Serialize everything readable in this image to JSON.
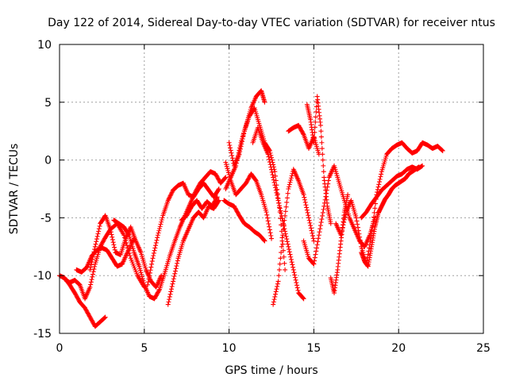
{
  "chart_data": {
    "type": "scatter",
    "title": "Day 122 of 2014, Sidereal Day-to-day VTEC variation (SDTVAR) for receiver ntus",
    "xlabel": "GPS time / hours",
    "ylabel": "SDTVAR / TECUs",
    "xlim": [
      0,
      25
    ],
    "ylim": [
      -15,
      10
    ],
    "xticks": [
      0,
      5,
      10,
      15,
      20,
      25
    ],
    "yticks": [
      -15,
      -10,
      -5,
      0,
      5,
      10
    ],
    "x_tick_labels": [
      "0",
      "5",
      "10",
      "15",
      "20",
      "25"
    ],
    "y_tick_labels": [
      "-15",
      "-10",
      "-5",
      "0",
      "5",
      "10"
    ],
    "grid": true,
    "marker": "+",
    "series_color": "#ff0000",
    "series": [
      {
        "name": "trace-1",
        "x": [
          0,
          0.3,
          0.6,
          0.9,
          1.2,
          1.5,
          1.8,
          2.1,
          2.4,
          2.7
        ],
        "y": [
          -10,
          -10.2,
          -10.8,
          -11.5,
          -12.3,
          -12.8,
          -13.6,
          -14.4,
          -14,
          -13.6
        ]
      },
      {
        "name": "trace-2",
        "x": [
          0.3,
          0.6,
          0.9,
          1.2,
          1.5,
          1.8,
          2.1,
          2.4,
          2.7,
          3.0,
          3.4,
          3.8,
          4.2,
          4.6,
          5.0
        ],
        "y": [
          -10.3,
          -10.6,
          -10.4,
          -10.8,
          -12.0,
          -11.0,
          -9.0,
          -7.5,
          -6.7,
          -6.0,
          -5.5,
          -6.5,
          -8.5,
          -10.0,
          -11.0
        ]
      },
      {
        "name": "trace-3",
        "x": [
          1.0,
          1.3,
          1.6,
          1.9,
          2.2,
          2.5,
          2.8,
          3.1,
          3.4,
          3.7,
          4.0,
          4.4
        ],
        "y": [
          -9.5,
          -9.7,
          -9.3,
          -8.3,
          -7.8,
          -7.6,
          -7.8,
          -8.5,
          -9.2,
          -9.0,
          -8.0,
          -6.8
        ]
      },
      {
        "name": "trace-4",
        "x": [
          1.8,
          2.1,
          2.4,
          2.7,
          3.0,
          3.3,
          3.6,
          3.9,
          4.2,
          4.5,
          4.8,
          5.1,
          5.4,
          5.7,
          6.0
        ],
        "y": [
          -9.5,
          -7.5,
          -5.5,
          -4.8,
          -6.0,
          -8.0,
          -8.2,
          -6.8,
          -5.8,
          -7.0,
          -8.0,
          -9.5,
          -10.5,
          -11.0,
          -10.0
        ]
      },
      {
        "name": "trace-5",
        "x": [
          3.2,
          3.5,
          3.8,
          4.1,
          4.4,
          4.7,
          5.0,
          5.3,
          5.6,
          5.9,
          6.2,
          6.5,
          6.8,
          7.1,
          7.4,
          7.7,
          8.0,
          8.3,
          8.6,
          8.9,
          9.2,
          9.5,
          9.8
        ],
        "y": [
          -5.2,
          -5.5,
          -5.8,
          -6.5,
          -8.0,
          -9.2,
          -10.8,
          -11.8,
          -12.0,
          -11.2,
          -9.8,
          -8.3,
          -7.0,
          -5.8,
          -4.8,
          -3.8,
          -2.8,
          -2.0,
          -1.5,
          -1.0,
          -1.2,
          -2.0,
          -1.5
        ]
      },
      {
        "name": "trace-6",
        "x": [
          5.2,
          5.5,
          5.8,
          6.1,
          6.4,
          6.7,
          7.0,
          7.3,
          7.6,
          7.9,
          8.2,
          8.5,
          8.8,
          9.1,
          9.4
        ],
        "y": [
          -10.8,
          -8.5,
          -6.5,
          -4.8,
          -3.5,
          -2.6,
          -2.2,
          -2.0,
          -3.0,
          -3.2,
          -2.5,
          -2.0,
          -2.6,
          -3.2,
          -2.5
        ]
      },
      {
        "name": "trace-7",
        "x": [
          6.4,
          6.7,
          7.0,
          7.3,
          7.6,
          7.9,
          8.2,
          8.5,
          8.8,
          9.1,
          9.4
        ],
        "y": [
          -12.5,
          -10.5,
          -8.5,
          -7.0,
          -6.0,
          -5.0,
          -4.5,
          -5.0,
          -4.0,
          -4.2,
          -3.5
        ]
      },
      {
        "name": "trace-8",
        "x": [
          7.2,
          7.5,
          7.8,
          8.1,
          8.4,
          8.7,
          9.0,
          9.3
        ],
        "y": [
          -5.2,
          -4.8,
          -4.0,
          -3.5,
          -4.2,
          -3.6,
          -4.0,
          -3.2
        ]
      },
      {
        "name": "trace-9",
        "x": [
          9.8,
          10.1,
          10.4,
          10.7,
          11.0,
          11.3,
          11.6,
          11.9,
          12.2,
          12.5
        ],
        "y": [
          -0.2,
          -1.8,
          -3.0,
          -2.5,
          -2.0,
          -1.2,
          -1.8,
          -3.0,
          -4.5,
          -6.8
        ]
      },
      {
        "name": "trace-10",
        "x": [
          9.7,
          10.0,
          10.3,
          10.6,
          10.9,
          11.2,
          11.5,
          11.8,
          12.1
        ],
        "y": [
          -3.5,
          -3.8,
          -4.0,
          -4.8,
          -5.5,
          -5.8,
          -6.2,
          -6.5,
          -7.0
        ]
      },
      {
        "name": "trace-11",
        "x": [
          9.8,
          10.1,
          10.4,
          10.7,
          11.0,
          11.3,
          11.6,
          11.9,
          12.1
        ],
        "y": [
          -2.5,
          -1.5,
          -0.5,
          1.5,
          3.0,
          4.5,
          5.5,
          6.0,
          5.0
        ]
      },
      {
        "name": "trace-12",
        "x": [
          10.0,
          10.3,
          10.6,
          10.9,
          11.2,
          11.5,
          11.8,
          12.1,
          12.4,
          12.7,
          13.0,
          13.3
        ],
        "y": [
          1.5,
          -0.5,
          0.5,
          2.5,
          3.8,
          4.5,
          3.0,
          1.5,
          0.8,
          -1.0,
          -4.5,
          -9.5
        ]
      },
      {
        "name": "trace-13",
        "x": [
          11.4,
          11.7,
          12.0,
          12.3,
          12.6,
          12.9,
          13.2,
          13.5,
          13.8,
          14.1,
          14.4
        ],
        "y": [
          1.5,
          2.8,
          1.5,
          0.5,
          -1.5,
          -3.5,
          -5.5,
          -7.5,
          -9.5,
          -11.5,
          -12.0
        ]
      },
      {
        "name": "trace-14",
        "x": [
          12.6,
          12.9,
          13.2,
          13.5,
          13.8,
          14.1,
          14.4,
          14.7,
          15.0
        ],
        "y": [
          -12.5,
          -10.5,
          -6.0,
          -2.5,
          -0.8,
          -1.8,
          -3.0,
          -5.0,
          -7.0
        ]
      },
      {
        "name": "trace-15",
        "x": [
          13.5,
          13.8,
          14.1,
          14.4,
          14.7,
          15.0,
          15.3
        ],
        "y": [
          2.5,
          2.8,
          3.0,
          2.2,
          1.0,
          2.0,
          0.5
        ]
      },
      {
        "name": "trace-16",
        "x": [
          14.6,
          14.8,
          15.0,
          15.2,
          15.4,
          15.6,
          15.8,
          16.0
        ],
        "y": [
          4.8,
          3.5,
          1.5,
          5.5,
          3.0,
          -1.5,
          -4.0,
          -5.5
        ]
      },
      {
        "name": "trace-17",
        "x": [
          14.4,
          14.7,
          15.0,
          15.3,
          15.6,
          15.9,
          16.2,
          16.5,
          16.8,
          17.1,
          17.4,
          17.7,
          18.0,
          18.3,
          18.6
        ],
        "y": [
          -7.0,
          -8.5,
          -9.0,
          -6.5,
          -4.0,
          -1.5,
          -0.5,
          -2.0,
          -3.5,
          -5.0,
          -6.0,
          -7.0,
          -7.5,
          -6.5,
          -5.0
        ]
      },
      {
        "name": "trace-18",
        "x": [
          16.3,
          16.6,
          16.9,
          17.2,
          17.5,
          17.8,
          18.1,
          18.4,
          18.7,
          19.0,
          19.3,
          19.6,
          19.9,
          20.2,
          20.5,
          20.8,
          21.1,
          21.4,
          21.7,
          22.0,
          22.3,
          22.6
        ],
        "y": [
          -5.5,
          -6.5,
          -4.5,
          -3.5,
          -5.0,
          -7.5,
          -9.0,
          -6.5,
          -3.0,
          -1.0,
          0.5,
          1.0,
          1.3,
          1.5,
          1.0,
          0.6,
          0.8,
          1.5,
          1.3,
          1.0,
          1.2,
          0.8
        ]
      },
      {
        "name": "trace-19",
        "x": [
          17.8,
          18.1,
          18.4,
          18.7,
          19.0,
          19.3,
          19.6,
          19.9,
          20.2,
          20.5,
          20.8,
          21.1,
          21.4
        ],
        "y": [
          -5.0,
          -4.5,
          -3.8,
          -3.2,
          -2.6,
          -2.2,
          -1.8,
          -1.4,
          -1.2,
          -0.8,
          -0.6,
          -0.8,
          -0.5
        ]
      },
      {
        "name": "trace-20",
        "x": [
          16.0,
          16.2,
          16.4,
          16.6,
          16.8,
          17.0
        ],
        "y": [
          -10.2,
          -11.5,
          -9.5,
          -7.0,
          -4.5,
          -3.0
        ]
      },
      {
        "name": "trace-21",
        "x": [
          17.8,
          18.0,
          18.2,
          18.4,
          18.6,
          18.8,
          19.0,
          19.2,
          19.4,
          19.6,
          19.8,
          20.0,
          20.2,
          20.4,
          20.6,
          20.8,
          21.0,
          21.2
        ],
        "y": [
          -8.0,
          -8.8,
          -9.2,
          -7.5,
          -5.8,
          -4.6,
          -4.0,
          -3.4,
          -3.0,
          -2.5,
          -2.2,
          -2.0,
          -1.8,
          -1.6,
          -1.2,
          -1.0,
          -0.8,
          -0.6
        ]
      }
    ]
  }
}
